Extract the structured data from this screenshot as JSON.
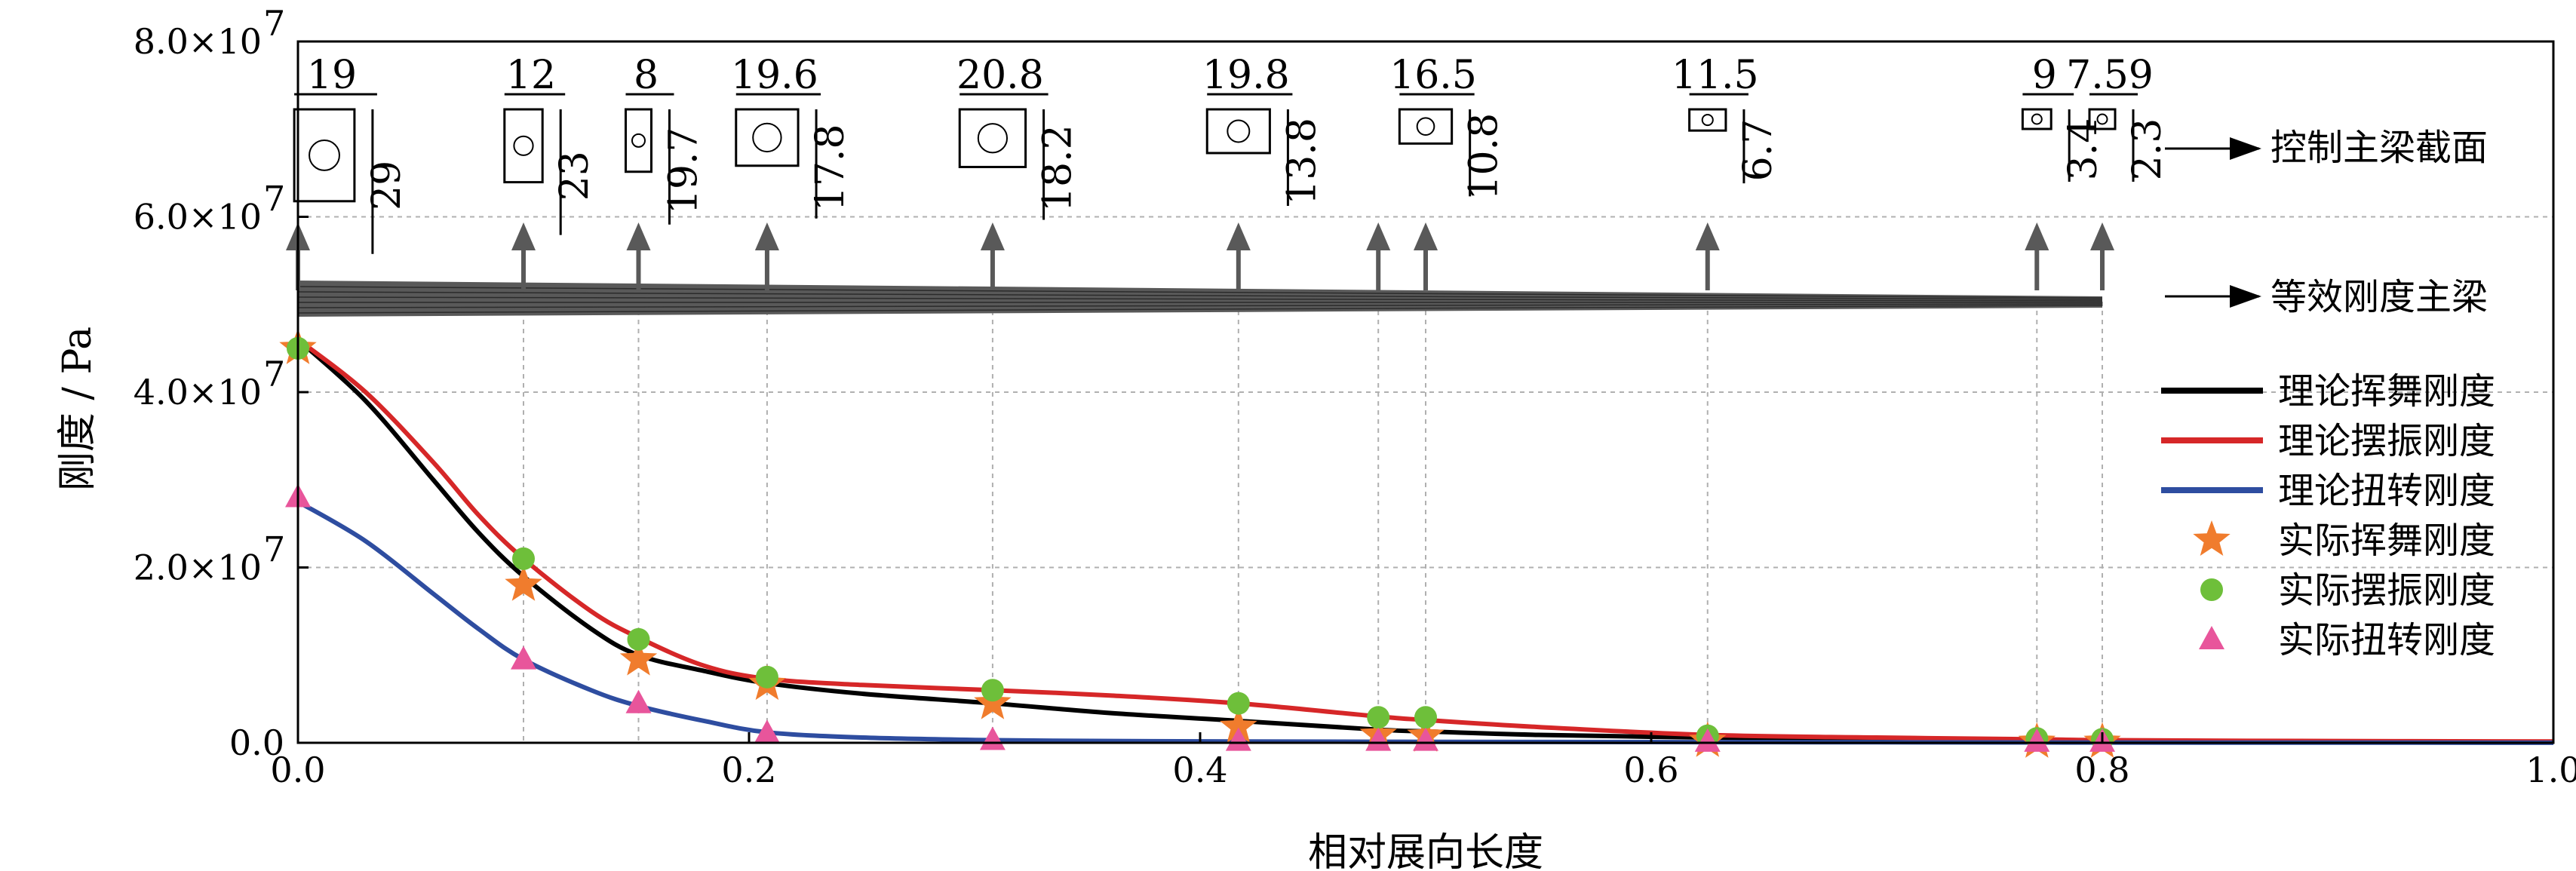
{
  "chart_data": {
    "type": "line",
    "xlabel": "相对展向长度",
    "ylabel": "刚度 / Pa",
    "xlim": [
      0,
      1.0
    ],
    "ylim": [
      0,
      80000000
    ],
    "x_ticks": [
      "0.0",
      "0.2",
      "0.4",
      "0.6",
      "0.8",
      "1.0"
    ],
    "y_ticks": [
      {
        "value": 0,
        "label": "0.0"
      },
      {
        "value": 20000000,
        "label": "2.0×10"
      },
      {
        "value": 40000000,
        "label": "4.0×10"
      },
      {
        "value": 60000000,
        "label": "6.0×10"
      },
      {
        "value": 80000000,
        "label": "8.0×10"
      }
    ],
    "y_tick_exponent": "7",
    "grid": "dashed vertical and horizontal guide lines at sections",
    "legend_position": "right",
    "section_positions": [
      0.0,
      0.1,
      0.151,
      0.208,
      0.308,
      0.417,
      0.479,
      0.5,
      0.625,
      0.771,
      0.8
    ],
    "series": [
      {
        "name": "理论挥舞刚度",
        "kind": "theory",
        "color": "#000000",
        "x": [
          0.0,
          0.03,
          0.06,
          0.08,
          0.1,
          0.13,
          0.151,
          0.18,
          0.208,
          0.25,
          0.308,
          0.36,
          0.417,
          0.479,
          0.5,
          0.55,
          0.625,
          0.7,
          0.771,
          0.8,
          0.9,
          1.0
        ],
        "values": [
          46000000,
          39000000,
          30000000,
          24000000,
          19000000,
          13000000,
          10000000,
          8200000,
          6800000,
          5600000,
          4500000,
          3400000,
          2500000,
          1500000,
          1300000,
          900000,
          600000,
          400000,
          300000,
          250000,
          150000,
          100000
        ]
      },
      {
        "name": "理论摆振刚度",
        "kind": "theory",
        "color": "#d62728",
        "x": [
          0.0,
          0.03,
          0.06,
          0.08,
          0.1,
          0.13,
          0.151,
          0.18,
          0.208,
          0.25,
          0.308,
          0.36,
          0.417,
          0.479,
          0.5,
          0.55,
          0.625,
          0.7,
          0.771,
          0.8,
          0.9,
          1.0
        ],
        "values": [
          46000000,
          40000000,
          32000000,
          26000000,
          21000000,
          15000000,
          12000000,
          8800000,
          7300000,
          6600000,
          6000000,
          5400000,
          4500000,
          3000000,
          2600000,
          1800000,
          900000,
          600000,
          400000,
          300000,
          200000,
          150000
        ]
      },
      {
        "name": "理论扭转刚度",
        "kind": "theory",
        "color": "#2e4da0",
        "x": [
          0.0,
          0.03,
          0.06,
          0.08,
          0.1,
          0.13,
          0.151,
          0.18,
          0.208,
          0.25,
          0.308,
          0.36,
          0.417,
          0.479,
          0.5,
          0.55,
          0.625,
          0.7,
          0.771,
          0.8,
          0.9,
          1.0
        ],
        "values": [
          27500000,
          23000000,
          17000000,
          13000000,
          9500000,
          6000000,
          4200000,
          2500000,
          1200000,
          600000,
          300000,
          200000,
          150000,
          120000,
          110000,
          100000,
          80000,
          60000,
          40000,
          30000,
          20000,
          10000
        ]
      },
      {
        "name": "实际挥舞刚度",
        "kind": "measured",
        "marker": "star",
        "color": "#f07c2d",
        "x": [
          0.0,
          0.1,
          0.151,
          0.208,
          0.308,
          0.417,
          0.479,
          0.5,
          0.625,
          0.771,
          0.8
        ],
        "values": [
          45000000,
          18000000,
          9500000,
          6700000,
          4500000,
          1800000,
          900000,
          800000,
          200000,
          100000,
          100000
        ]
      },
      {
        "name": "实际摆振刚度",
        "kind": "measured",
        "marker": "circle",
        "color": "#6ebf3a",
        "x": [
          0.0,
          0.1,
          0.151,
          0.208,
          0.308,
          0.417,
          0.479,
          0.5,
          0.625,
          0.771,
          0.8
        ],
        "values": [
          45000000,
          21000000,
          11800000,
          7500000,
          6000000,
          4500000,
          2900000,
          2900000,
          800000,
          500000,
          400000
        ]
      },
      {
        "name": "实际扭转刚度",
        "kind": "measured",
        "marker": "triangle",
        "color": "#e8559b",
        "x": [
          0.0,
          0.1,
          0.151,
          0.208,
          0.308,
          0.417,
          0.479,
          0.5,
          0.625,
          0.771,
          0.8
        ],
        "values": [
          28000000,
          9500000,
          4500000,
          1100000,
          300000,
          200000,
          200000,
          200000,
          100000,
          100000,
          100000
        ]
      }
    ],
    "annotations": {
      "section_label": "控制主梁截面",
      "beam_label": "等效刚度主梁",
      "cross_section_dims": [
        {
          "x": 0.0,
          "width": "19",
          "height": "29"
        },
        {
          "x": 0.1,
          "width": "12",
          "height": "23"
        },
        {
          "x": 0.151,
          "width": "8",
          "height": "19.7"
        },
        {
          "x": 0.208,
          "width": "19.6",
          "height": "17.8"
        },
        {
          "x": 0.308,
          "width": "20.8",
          "height": "18.2"
        },
        {
          "x": 0.417,
          "width": "19.8",
          "height": "13.8"
        },
        {
          "x": 0.5,
          "width": "16.5",
          "height": "10.8"
        },
        {
          "x": 0.625,
          "width": "11.5",
          "height": "6.7"
        },
        {
          "x": 0.771,
          "width": "9",
          "height": "3.4"
        },
        {
          "x": 0.8,
          "width": "7.59",
          "height": "2.3"
        }
      ]
    }
  }
}
